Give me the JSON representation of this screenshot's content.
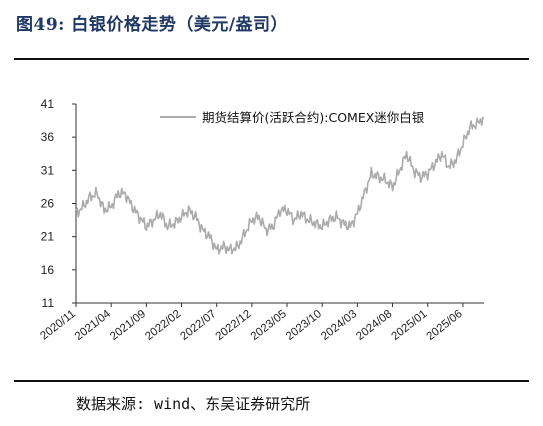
{
  "figure": {
    "title": "图49: 白银价格走势（美元/盎司）",
    "source": "数据来源: wind、东吴证券研究所"
  },
  "colors": {
    "line": "#ababab",
    "axis": "#333333",
    "title": "#1f3864"
  },
  "chart_data": {
    "type": "line",
    "title": "",
    "xlabel": "",
    "ylabel": "",
    "ylim": [
      11,
      41
    ],
    "yticks": [
      "11",
      "16",
      "21",
      "26",
      "31",
      "36",
      "41"
    ],
    "xticks": [
      "2020/11",
      "2021/04",
      "2021/09",
      "2022/02",
      "2022/07",
      "2022/12",
      "2023/05",
      "2023/10",
      "2024/03",
      "2024/08",
      "2025/01",
      "2025/06"
    ],
    "grid": false,
    "legend": "top-right",
    "series": [
      {
        "name": "期货结算价(活跃合约):COMEX迷你白银",
        "x": [
          "2020/11",
          "2020/12",
          "2021/01",
          "2021/02",
          "2021/03",
          "2021/04",
          "2021/05",
          "2021/06",
          "2021/07",
          "2021/08",
          "2021/09",
          "2021/10",
          "2021/11",
          "2021/12",
          "2022/01",
          "2022/02",
          "2022/03",
          "2022/04",
          "2022/05",
          "2022/06",
          "2022/07",
          "2022/08",
          "2022/09",
          "2022/10",
          "2022/11",
          "2022/12",
          "2023/01",
          "2023/02",
          "2023/03",
          "2023/04",
          "2023/05",
          "2023/06",
          "2023/07",
          "2023/08",
          "2023/09",
          "2023/10",
          "2023/11",
          "2023/12",
          "2024/01",
          "2024/02",
          "2024/03",
          "2024/04",
          "2024/05",
          "2024/06",
          "2024/07",
          "2024/08",
          "2024/09",
          "2024/10",
          "2024/11",
          "2024/12",
          "2025/01",
          "2025/02",
          "2025/03",
          "2025/04",
          "2025/05",
          "2025/06",
          "2025/07",
          "2025/08",
          "2025/09"
        ],
        "values": [
          24.5,
          25.5,
          27.0,
          27.5,
          25.0,
          25.5,
          27.5,
          27.5,
          25.5,
          24.0,
          22.5,
          23.5,
          24.5,
          22.5,
          23.0,
          24.0,
          25.0,
          24.0,
          22.0,
          21.0,
          19.0,
          19.5,
          19.0,
          19.5,
          21.5,
          23.5,
          24.0,
          22.0,
          22.5,
          25.0,
          25.0,
          23.5,
          24.5,
          23.5,
          23.0,
          22.5,
          23.5,
          24.0,
          23.0,
          22.5,
          24.5,
          27.5,
          30.5,
          30.0,
          29.5,
          28.5,
          31.0,
          33.5,
          31.0,
          30.0,
          30.5,
          32.0,
          33.5,
          31.5,
          32.5,
          35.0,
          37.5,
          38.0,
          39.0
        ]
      }
    ]
  }
}
